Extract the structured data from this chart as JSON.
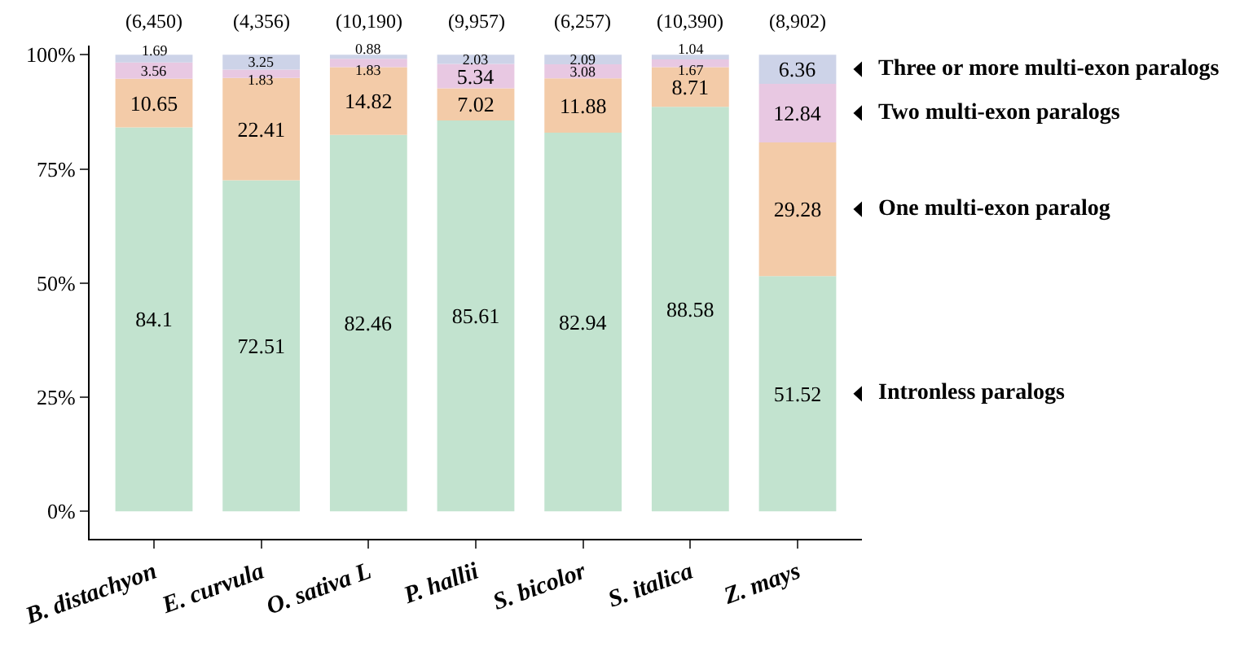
{
  "chart_data": {
    "type": "bar",
    "stacked": true,
    "data_labels": true,
    "legend": false,
    "categories": [
      "B. distachyon",
      "E. curvula",
      "O. sativa L",
      "P. hallii",
      "S. bicolor",
      "S. italica",
      "Z. mays"
    ],
    "series": [
      {
        "name": "Intronless paralogs",
        "color": "#c2e3cf",
        "values": [
          84.1,
          72.51,
          82.46,
          85.61,
          82.94,
          88.58,
          51.52
        ]
      },
      {
        "name": "One multi-exon paralog",
        "color": "#f3cba8",
        "values": [
          10.65,
          22.41,
          14.82,
          7.02,
          11.88,
          8.71,
          29.28
        ]
      },
      {
        "name": "Two multi-exon paralogs",
        "color": "#e8c8e2",
        "values": [
          3.56,
          1.83,
          1.83,
          5.34,
          3.08,
          1.67,
          12.84
        ]
      },
      {
        "name": "Three or more multi-exon paralogs",
        "color": "#cdd3e8",
        "values": [
          1.69,
          3.25,
          0.88,
          2.03,
          2.09,
          1.04,
          6.36
        ]
      }
    ],
    "annotations": [
      {
        "text": "(6,450)",
        "x": "B. distachyon",
        "y": 100
      },
      {
        "text": "(4,356)",
        "x": "E. curvula",
        "y": 100
      },
      {
        "text": "(10,190)",
        "x": "O. sativa L",
        "y": 100
      },
      {
        "text": "(9,957)",
        "x": "P. hallii",
        "y": 100
      },
      {
        "text": "(6,257)",
        "x": "S. bicolor",
        "y": 100
      },
      {
        "text": "(10,390)",
        "x": "S. italica",
        "y": 100
      },
      {
        "text": "(8,902)",
        "x": "Z. mays",
        "y": 100
      }
    ],
    "ylim": [
      -6,
      102
    ],
    "yticks": [
      {
        "value": 0,
        "label": "0%"
      },
      {
        "value": 25,
        "label": "25%"
      },
      {
        "value": 50,
        "label": "50%"
      },
      {
        "value": 75,
        "label": "75%"
      },
      {
        "value": 100,
        "label": "100%"
      }
    ]
  }
}
